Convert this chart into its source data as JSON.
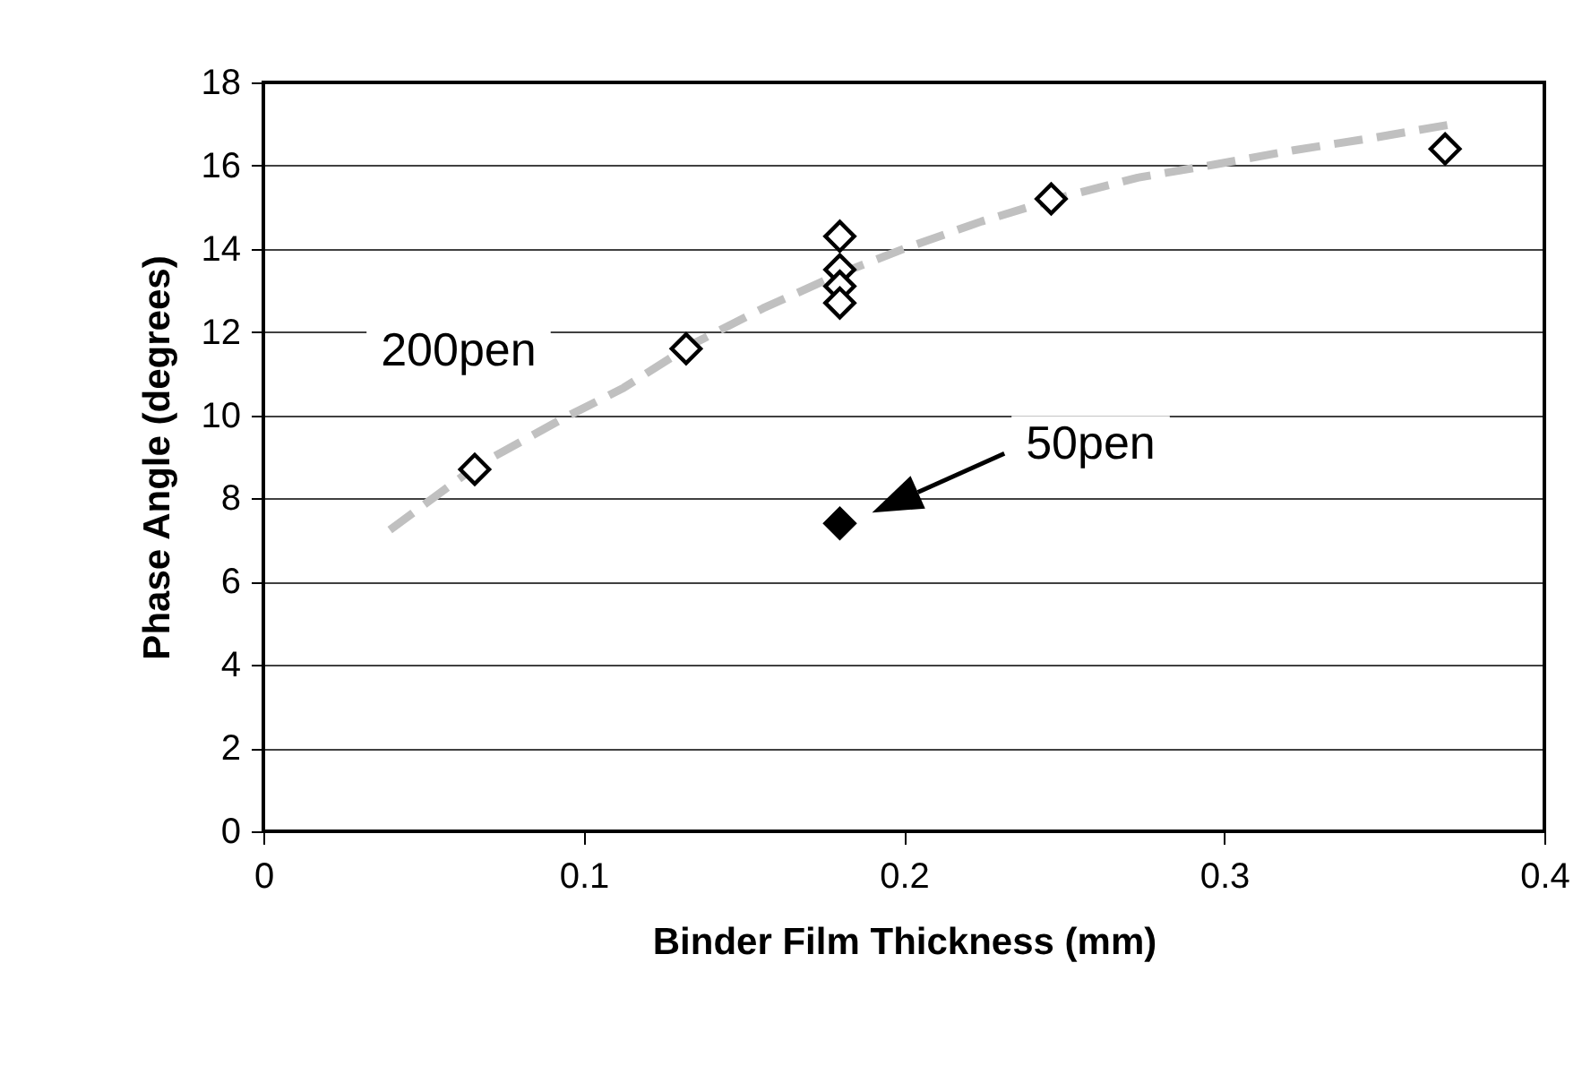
{
  "chart_data": {
    "type": "scatter",
    "xlabel": "Binder Film Thickness (mm)",
    "ylabel": "Phase Angle (degrees)",
    "xlim": [
      0,
      0.4
    ],
    "xticks": [
      0,
      0.1,
      0.2,
      0.3,
      0.4
    ],
    "ylim": [
      0,
      18
    ],
    "yticks": [
      0,
      2,
      4,
      6,
      8,
      10,
      12,
      14,
      16,
      18
    ],
    "grid": "y",
    "marker": "diamond",
    "series": [
      {
        "name": "200pen",
        "color": "#000000",
        "x": [
          0.066,
          0.132,
          0.18,
          0.18,
          0.18,
          0.18,
          0.246,
          0.369
        ],
        "values": [
          8.7,
          11.6,
          14.3,
          13.5,
          13.1,
          12.7,
          15.2,
          16.4
        ]
      },
      {
        "name": "50pen",
        "color": "#000000",
        "x": [
          0.18
        ],
        "values": [
          7.4
        ]
      },
      {
        "type": "line",
        "color": "#c0c0c0",
        "line_style": "dashed",
        "marker": "none",
        "x": [
          0.0395,
          0.0662,
          0.093,
          0.1125,
          0.134,
          0.156,
          0.1806,
          0.2,
          0.2243,
          0.2487,
          0.273,
          0.2973,
          0.3217,
          0.346,
          0.37
        ],
        "values": [
          7.24,
          8.76,
          9.9,
          10.66,
          11.71,
          12.57,
          13.42,
          14.0,
          14.66,
          15.23,
          15.71,
          16.03,
          16.37,
          16.66,
          16.98
        ]
      }
    ]
  }
}
